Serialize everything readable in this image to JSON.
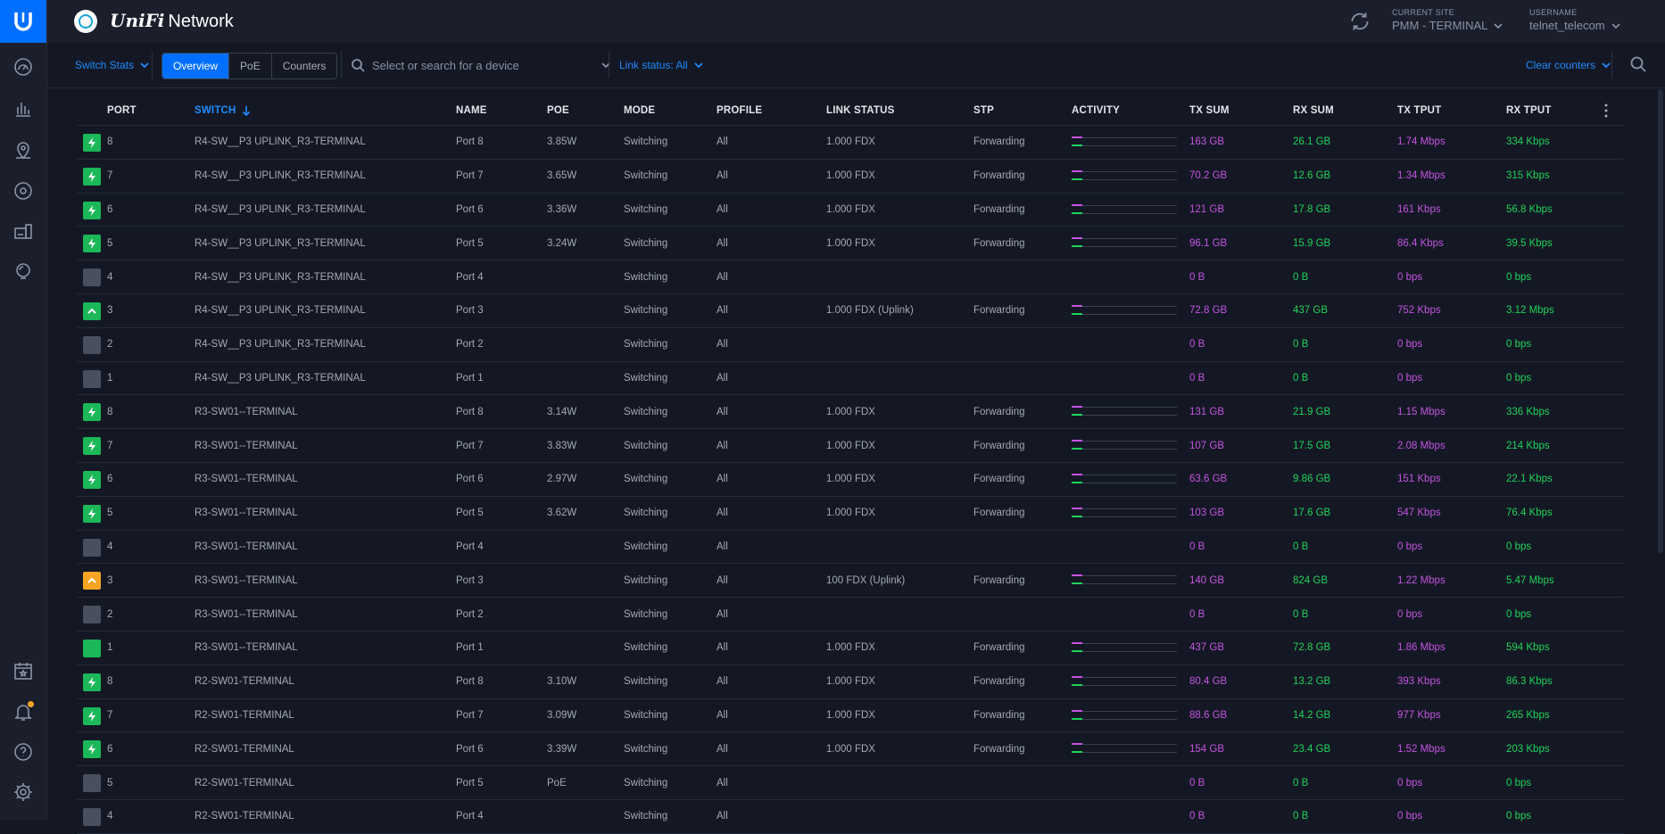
{
  "app": {
    "title_brand": "UniFi",
    "title_rest": "Network"
  },
  "header": {
    "site_label": "CURRENT SITE",
    "site_value": "PMM - TERMINAL",
    "user_label": "USERNAME",
    "user_value": "telnet_telecom"
  },
  "toolbar": {
    "stats_label": "Switch Stats",
    "tabs": [
      "Overview",
      "PoE",
      "Counters"
    ],
    "active_tab": "Overview",
    "search_placeholder": "Select or search for a device",
    "link_status": "Link status: All",
    "clear_counters": "Clear counters"
  },
  "table": {
    "headers": [
      "PORT",
      "SWITCH",
      "NAME",
      "POE",
      "MODE",
      "PROFILE",
      "LINK STATUS",
      "STP",
      "ACTIVITY",
      "TX SUM",
      "RX SUM",
      "TX TPUT",
      "RX TPUT"
    ],
    "rows": [
      {
        "status": "poe",
        "port": "8",
        "switch": "R4-SW__P3 UPLINK_R3-TERMINAL",
        "name": "Port 8",
        "poe": "3.85W",
        "mode": "Switching",
        "profile": "All",
        "link": "1.000 FDX",
        "stp": "Forwarding",
        "activity": true,
        "tx_sum": "163 GB",
        "rx_sum": "26.1 GB",
        "tx_tput": "1.74 Mbps",
        "rx_tput": "334 Kbps"
      },
      {
        "status": "poe",
        "port": "7",
        "switch": "R4-SW__P3 UPLINK_R3-TERMINAL",
        "name": "Port 7",
        "poe": "3.65W",
        "mode": "Switching",
        "profile": "All",
        "link": "1.000 FDX",
        "stp": "Forwarding",
        "activity": true,
        "tx_sum": "70.2 GB",
        "rx_sum": "12.6 GB",
        "tx_tput": "1.34 Mbps",
        "rx_tput": "315 Kbps"
      },
      {
        "status": "poe",
        "port": "6",
        "switch": "R4-SW__P3 UPLINK_R3-TERMINAL",
        "name": "Port 6",
        "poe": "3.36W",
        "mode": "Switching",
        "profile": "All",
        "link": "1.000 FDX",
        "stp": "Forwarding",
        "activity": true,
        "tx_sum": "121 GB",
        "rx_sum": "17.8 GB",
        "tx_tput": "161 Kbps",
        "rx_tput": "56.8 Kbps"
      },
      {
        "status": "poe",
        "port": "5",
        "switch": "R4-SW__P3 UPLINK_R3-TERMINAL",
        "name": "Port 5",
        "poe": "3.24W",
        "mode": "Switching",
        "profile": "All",
        "link": "1.000 FDX",
        "stp": "Forwarding",
        "activity": true,
        "tx_sum": "96.1 GB",
        "rx_sum": "15.9 GB",
        "tx_tput": "86.4 Kbps",
        "rx_tput": "39.5 Kbps"
      },
      {
        "status": "down",
        "port": "4",
        "switch": "R4-SW__P3 UPLINK_R3-TERMINAL",
        "name": "Port 4",
        "poe": "",
        "mode": "Switching",
        "profile": "All",
        "link": "",
        "stp": "",
        "activity": false,
        "tx_sum": "0 B",
        "rx_sum": "0 B",
        "tx_tput": "0 bps",
        "rx_tput": "0 bps"
      },
      {
        "status": "uplink",
        "port": "3",
        "switch": "R4-SW__P3 UPLINK_R3-TERMINAL",
        "name": "Port 3",
        "poe": "",
        "mode": "Switching",
        "profile": "All",
        "link": "1.000 FDX (Uplink)",
        "stp": "Forwarding",
        "activity": true,
        "tx_sum": "72.8 GB",
        "rx_sum": "437 GB",
        "tx_tput": "752 Kbps",
        "rx_tput": "3.12 Mbps"
      },
      {
        "status": "down",
        "port": "2",
        "switch": "R4-SW__P3 UPLINK_R3-TERMINAL",
        "name": "Port 2",
        "poe": "",
        "mode": "Switching",
        "profile": "All",
        "link": "",
        "stp": "",
        "activity": false,
        "tx_sum": "0 B",
        "rx_sum": "0 B",
        "tx_tput": "0 bps",
        "rx_tput": "0 bps"
      },
      {
        "status": "down",
        "port": "1",
        "switch": "R4-SW__P3 UPLINK_R3-TERMINAL",
        "name": "Port 1",
        "poe": "",
        "mode": "Switching",
        "profile": "All",
        "link": "",
        "stp": "",
        "activity": false,
        "tx_sum": "0 B",
        "rx_sum": "0 B",
        "tx_tput": "0 bps",
        "rx_tput": "0 bps"
      },
      {
        "status": "poe",
        "port": "8",
        "switch": "R3-SW01--TERMINAL",
        "name": "Port 8",
        "poe": "3.14W",
        "mode": "Switching",
        "profile": "All",
        "link": "1.000 FDX",
        "stp": "Forwarding",
        "activity": true,
        "tx_sum": "131 GB",
        "rx_sum": "21.9 GB",
        "tx_tput": "1.15 Mbps",
        "rx_tput": "336 Kbps"
      },
      {
        "status": "poe",
        "port": "7",
        "switch": "R3-SW01--TERMINAL",
        "name": "Port 7",
        "poe": "3.83W",
        "mode": "Switching",
        "profile": "All",
        "link": "1.000 FDX",
        "stp": "Forwarding",
        "activity": true,
        "tx_sum": "107 GB",
        "rx_sum": "17.5 GB",
        "tx_tput": "2.08 Mbps",
        "rx_tput": "214 Kbps"
      },
      {
        "status": "poe",
        "port": "6",
        "switch": "R3-SW01--TERMINAL",
        "name": "Port 6",
        "poe": "2.97W",
        "mode": "Switching",
        "profile": "All",
        "link": "1.000 FDX",
        "stp": "Forwarding",
        "activity": true,
        "tx_sum": "63.6 GB",
        "rx_sum": "9.86 GB",
        "tx_tput": "151 Kbps",
        "rx_tput": "22.1 Kbps"
      },
      {
        "status": "poe",
        "port": "5",
        "switch": "R3-SW01--TERMINAL",
        "name": "Port 5",
        "poe": "3.62W",
        "mode": "Switching",
        "profile": "All",
        "link": "1.000 FDX",
        "stp": "Forwarding",
        "activity": true,
        "tx_sum": "103 GB",
        "rx_sum": "17.6 GB",
        "tx_tput": "547 Kbps",
        "rx_tput": "76.4 Kbps"
      },
      {
        "status": "down",
        "port": "4",
        "switch": "R3-SW01--TERMINAL",
        "name": "Port 4",
        "poe": "",
        "mode": "Switching",
        "profile": "All",
        "link": "",
        "stp": "",
        "activity": false,
        "tx_sum": "0 B",
        "rx_sum": "0 B",
        "tx_tput": "0 bps",
        "rx_tput": "0 bps"
      },
      {
        "status": "uplink-warn",
        "port": "3",
        "switch": "R3-SW01--TERMINAL",
        "name": "Port 3",
        "poe": "",
        "mode": "Switching",
        "profile": "All",
        "link": "100 FDX (Uplink)",
        "stp": "Forwarding",
        "activity": true,
        "tx_sum": "140 GB",
        "rx_sum": "824 GB",
        "tx_tput": "1.22 Mbps",
        "rx_tput": "5.47 Mbps"
      },
      {
        "status": "down",
        "port": "2",
        "switch": "R3-SW01--TERMINAL",
        "name": "Port 2",
        "poe": "",
        "mode": "Switching",
        "profile": "All",
        "link": "",
        "stp": "",
        "activity": false,
        "tx_sum": "0 B",
        "rx_sum": "0 B",
        "tx_tput": "0 bps",
        "rx_tput": "0 bps"
      },
      {
        "status": "up",
        "port": "1",
        "switch": "R3-SW01--TERMINAL",
        "name": "Port 1",
        "poe": "",
        "mode": "Switching",
        "profile": "All",
        "link": "1.000 FDX",
        "stp": "Forwarding",
        "activity": true,
        "tx_sum": "437 GB",
        "rx_sum": "72.8 GB",
        "tx_tput": "1.86 Mbps",
        "rx_tput": "594 Kbps"
      },
      {
        "status": "poe",
        "port": "8",
        "switch": "R2-SW01-TERMINAL",
        "name": "Port 8",
        "poe": "3.10W",
        "mode": "Switching",
        "profile": "All",
        "link": "1.000 FDX",
        "stp": "Forwarding",
        "activity": true,
        "tx_sum": "80.4 GB",
        "rx_sum": "13.2 GB",
        "tx_tput": "393 Kbps",
        "rx_tput": "86.3 Kbps"
      },
      {
        "status": "poe",
        "port": "7",
        "switch": "R2-SW01-TERMINAL",
        "name": "Port 7",
        "poe": "3.09W",
        "mode": "Switching",
        "profile": "All",
        "link": "1.000 FDX",
        "stp": "Forwarding",
        "activity": true,
        "tx_sum": "88.6 GB",
        "rx_sum": "14.2 GB",
        "tx_tput": "977 Kbps",
        "rx_tput": "265 Kbps"
      },
      {
        "status": "poe",
        "port": "6",
        "switch": "R2-SW01-TERMINAL",
        "name": "Port 6",
        "poe": "3.39W",
        "mode": "Switching",
        "profile": "All",
        "link": "1.000 FDX",
        "stp": "Forwarding",
        "activity": true,
        "tx_sum": "154 GB",
        "rx_sum": "23.4 GB",
        "tx_tput": "1.52 Mbps",
        "rx_tput": "203 Kbps"
      },
      {
        "status": "down",
        "port": "5",
        "switch": "R2-SW01-TERMINAL",
        "name": "Port 5",
        "poe": "PoE",
        "mode": "Switching",
        "profile": "All",
        "link": "",
        "stp": "",
        "activity": false,
        "tx_sum": "0 B",
        "rx_sum": "0 B",
        "tx_tput": "0 bps",
        "rx_tput": "0 bps"
      },
      {
        "status": "down",
        "port": "4",
        "switch": "R2-SW01-TERMINAL",
        "name": "Port 4",
        "poe": "",
        "mode": "Switching",
        "profile": "All",
        "link": "",
        "stp": "",
        "activity": false,
        "tx_sum": "0 B",
        "rx_sum": "0 B",
        "tx_tput": "0 bps",
        "rx_tput": "0 bps"
      }
    ]
  },
  "nav": {
    "icons": [
      "dashboard-icon",
      "statistics-icon",
      "map-icon",
      "devices-icon",
      "clients-icon",
      "insights-icon",
      "events-icon",
      "alerts-icon",
      "help-icon",
      "settings-icon"
    ]
  },
  "colors": {
    "accent": "#006fff",
    "tx": "#c454e0",
    "rx": "#1fd35a",
    "poe_green": "#1bb758",
    "warn": "#f5a524"
  }
}
